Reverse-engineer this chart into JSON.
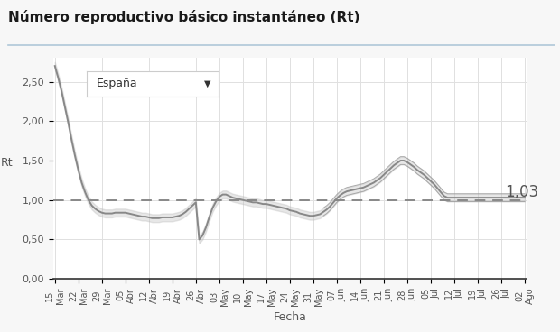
{
  "title": "Número reproductivo básico instantáneo (Rt)",
  "xlabel": "Fecha",
  "ylabel": "Rt",
  "background_color": "#f7f7f7",
  "plot_bg_color": "#ffffff",
  "line_color": "#888888",
  "band_color": "#bbbbbb",
  "dashed_line_color": "#888888",
  "annotation_text": "1,03",
  "annotation_value": 1.03,
  "ylim": [
    0.0,
    2.8
  ],
  "yticks": [
    0.0,
    0.5,
    1.0,
    1.5,
    2.0,
    2.5
  ],
  "ytick_labels": [
    "0,00",
    "0,50",
    "1,00",
    "1,50",
    "2,00",
    "2,50"
  ],
  "x_tick_labels": [
    "15\nMar",
    "22\nMar",
    "29\nMar",
    "05\nAbr",
    "12\nAbr",
    "19\nAbr",
    "26\nAbr",
    "03\nMay",
    "10\nMay",
    "17\nMay",
    "24\nMay",
    "31\nMay",
    "07\nJun",
    "14\nJun",
    "21\nJun",
    "28\nJun",
    "05\nJul",
    "12\nJul",
    "19\nJul",
    "26\nJul",
    "02\nAgo"
  ],
  "title_fontsize": 11,
  "axis_fontsize": 8,
  "label_fontsize": 9,
  "dropdown_text": "España",
  "y_values": [
    2.7,
    2.55,
    2.38,
    2.18,
    1.98,
    1.76,
    1.56,
    1.38,
    1.22,
    1.1,
    1.0,
    0.93,
    0.89,
    0.86,
    0.84,
    0.83,
    0.83,
    0.83,
    0.84,
    0.84,
    0.84,
    0.84,
    0.83,
    0.82,
    0.81,
    0.8,
    0.79,
    0.79,
    0.78,
    0.77,
    0.77,
    0.77,
    0.78,
    0.78,
    0.78,
    0.78,
    0.79,
    0.8,
    0.82,
    0.85,
    0.89,
    0.93,
    0.97,
    0.5,
    0.55,
    0.65,
    0.78,
    0.9,
    0.98,
    1.04,
    1.07,
    1.07,
    1.05,
    1.03,
    1.02,
    1.01,
    1.0,
    0.99,
    0.98,
    0.97,
    0.97,
    0.96,
    0.95,
    0.95,
    0.94,
    0.93,
    0.92,
    0.91,
    0.9,
    0.89,
    0.87,
    0.86,
    0.85,
    0.83,
    0.82,
    0.81,
    0.8,
    0.8,
    0.81,
    0.82,
    0.85,
    0.88,
    0.92,
    0.97,
    1.02,
    1.06,
    1.09,
    1.11,
    1.12,
    1.13,
    1.14,
    1.15,
    1.16,
    1.18,
    1.2,
    1.22,
    1.25,
    1.28,
    1.32,
    1.36,
    1.4,
    1.44,
    1.47,
    1.5,
    1.5,
    1.48,
    1.45,
    1.42,
    1.38,
    1.35,
    1.32,
    1.28,
    1.24,
    1.2,
    1.15,
    1.1,
    1.05,
    1.03,
    1.03,
    1.03,
    1.03,
    1.03,
    1.03,
    1.03,
    1.03,
    1.03,
    1.03,
    1.03,
    1.03,
    1.03,
    1.03,
    1.03,
    1.03,
    1.03,
    1.03,
    1.03,
    1.03,
    1.03,
    1.03,
    1.03,
    1.03
  ],
  "y_upper": [
    2.75,
    2.6,
    2.43,
    2.23,
    2.03,
    1.81,
    1.61,
    1.43,
    1.27,
    1.15,
    1.05,
    0.98,
    0.94,
    0.91,
    0.89,
    0.88,
    0.88,
    0.88,
    0.89,
    0.89,
    0.89,
    0.89,
    0.88,
    0.87,
    0.86,
    0.85,
    0.84,
    0.84,
    0.83,
    0.82,
    0.82,
    0.82,
    0.83,
    0.83,
    0.83,
    0.83,
    0.84,
    0.85,
    0.87,
    0.9,
    0.94,
    0.98,
    1.02,
    0.55,
    0.6,
    0.7,
    0.83,
    0.95,
    1.03,
    1.09,
    1.12,
    1.12,
    1.1,
    1.08,
    1.07,
    1.06,
    1.05,
    1.04,
    1.03,
    1.02,
    1.02,
    1.01,
    1.0,
    1.0,
    0.99,
    0.98,
    0.97,
    0.96,
    0.95,
    0.94,
    0.92,
    0.91,
    0.9,
    0.88,
    0.87,
    0.86,
    0.85,
    0.85,
    0.86,
    0.87,
    0.9,
    0.93,
    0.97,
    1.02,
    1.07,
    1.11,
    1.14,
    1.16,
    1.17,
    1.18,
    1.19,
    1.2,
    1.21,
    1.23,
    1.25,
    1.27,
    1.3,
    1.33,
    1.37,
    1.41,
    1.45,
    1.49,
    1.52,
    1.55,
    1.55,
    1.53,
    1.5,
    1.47,
    1.43,
    1.4,
    1.37,
    1.33,
    1.29,
    1.25,
    1.2,
    1.15,
    1.1,
    1.08,
    1.08,
    1.08,
    1.08,
    1.08,
    1.08,
    1.08,
    1.08,
    1.08,
    1.08,
    1.08,
    1.08,
    1.08,
    1.08,
    1.08,
    1.08,
    1.08,
    1.08,
    1.08,
    1.08,
    1.08,
    1.08,
    1.08,
    1.08
  ],
  "y_lower": [
    2.65,
    2.5,
    2.33,
    2.13,
    1.93,
    1.71,
    1.51,
    1.33,
    1.17,
    1.05,
    0.95,
    0.88,
    0.84,
    0.81,
    0.79,
    0.78,
    0.78,
    0.78,
    0.79,
    0.79,
    0.79,
    0.79,
    0.78,
    0.77,
    0.76,
    0.75,
    0.74,
    0.74,
    0.73,
    0.72,
    0.72,
    0.72,
    0.73,
    0.73,
    0.73,
    0.73,
    0.74,
    0.75,
    0.77,
    0.8,
    0.84,
    0.88,
    0.92,
    0.45,
    0.5,
    0.6,
    0.73,
    0.85,
    0.93,
    0.99,
    1.02,
    1.02,
    1.0,
    0.98,
    0.97,
    0.96,
    0.95,
    0.94,
    0.93,
    0.92,
    0.92,
    0.91,
    0.9,
    0.9,
    0.89,
    0.88,
    0.87,
    0.86,
    0.85,
    0.84,
    0.82,
    0.81,
    0.8,
    0.78,
    0.77,
    0.76,
    0.75,
    0.75,
    0.76,
    0.77,
    0.8,
    0.83,
    0.87,
    0.92,
    0.97,
    1.01,
    1.04,
    1.06,
    1.07,
    1.08,
    1.09,
    1.1,
    1.11,
    1.13,
    1.15,
    1.17,
    1.2,
    1.23,
    1.27,
    1.31,
    1.35,
    1.39,
    1.42,
    1.45,
    1.45,
    1.43,
    1.4,
    1.37,
    1.33,
    1.3,
    1.27,
    1.23,
    1.19,
    1.15,
    1.1,
    1.05,
    1.0,
    0.98,
    0.98,
    0.98,
    0.98,
    0.98,
    0.98,
    0.98,
    0.98,
    0.98,
    0.98,
    0.98,
    0.98,
    0.98,
    0.98,
    0.98,
    0.98,
    0.98,
    0.98,
    0.98,
    0.98,
    0.98,
    0.98,
    0.98,
    0.98
  ],
  "n_data": 141,
  "n_ticks": 21,
  "divider_line_color": "#b0c8d8",
  "title_color": "#1a1a1a",
  "tick_color": "#555555",
  "grid_color": "#e0e0e0",
  "spine_color": "#333333"
}
